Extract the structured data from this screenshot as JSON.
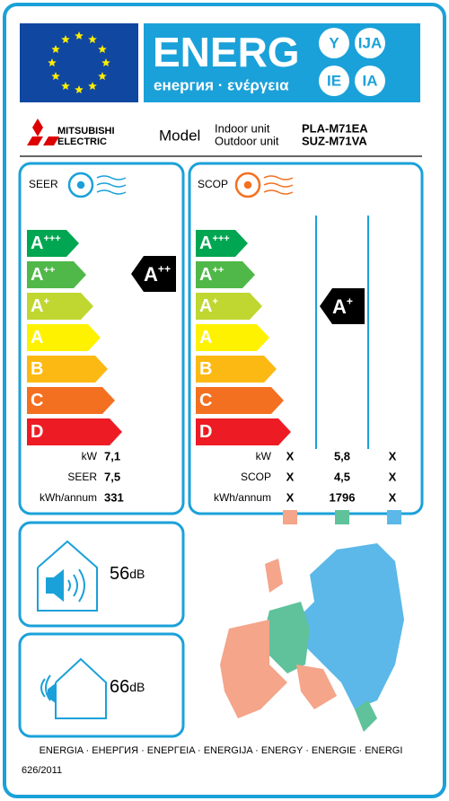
{
  "header": {
    "title": "ENERG",
    "subtitle": "енергия · ενέργεια",
    "suffixes": [
      "Y",
      "IJA",
      "IE",
      "IA"
    ]
  },
  "brand": {
    "line1": "MITSUBISHI",
    "line2": "ELECTRIC"
  },
  "model": {
    "label": "Model",
    "indoor_label": "Indoor unit",
    "outdoor_label": "Outdoor unit",
    "indoor": "PLA-M71EA",
    "outdoor": "SUZ-M71VA"
  },
  "classes": [
    {
      "letter": "A",
      "sup": "+++"
    },
    {
      "letter": "A",
      "sup": "++"
    },
    {
      "letter": "A",
      "sup": "+"
    },
    {
      "letter": "A"
    },
    {
      "letter": "B"
    },
    {
      "letter": "C"
    },
    {
      "letter": "D"
    }
  ],
  "seer": {
    "label": "SEER",
    "rating": {
      "letter": "A",
      "sup": "++"
    },
    "rows": [
      {
        "label": "kW",
        "value": "7,1"
      },
      {
        "label": "SEER",
        "value": "7,5"
      },
      {
        "label": "kWh/annum",
        "value": "331"
      }
    ]
  },
  "scop": {
    "label": "SCOP",
    "rating": {
      "letter": "A",
      "sup": "+"
    },
    "rows": [
      {
        "label": "kW",
        "values": [
          "X",
          "5,8",
          "X"
        ]
      },
      {
        "label": "SCOP",
        "values": [
          "X",
          "4,5",
          "X"
        ]
      },
      {
        "label": "kWh/annum",
        "values": [
          "X",
          "1796",
          "X"
        ]
      }
    ]
  },
  "noise": {
    "indoor": {
      "value": "56",
      "unit": "dB"
    },
    "outdoor": {
      "value": "66",
      "unit": "dB"
    }
  },
  "footer": {
    "languages": "ENERGIA · ЕНЕРГИЯ · ΕΝΕΡΓΕΙΑ · ENERGIJA · ENERGY · ENERGIE · ENERGI",
    "regulation": "626/2011"
  }
}
